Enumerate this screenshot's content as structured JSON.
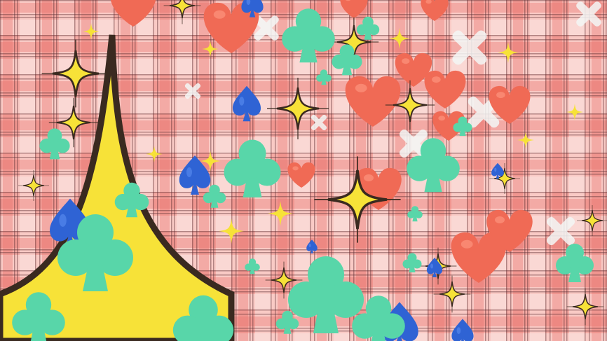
{
  "scene": {
    "description_none": "",
    "palette": {
      "plaid_base": "#f5aaa4",
      "plaid_light": "#fbe3e0",
      "plaid_dark": "#e86f6a",
      "plaid_line": "#5b2f32",
      "heart": "#f06a55",
      "heart_highlight": "#ff9b84",
      "club": "#58d6a9",
      "club_shadow": "#3fb58e",
      "spade": "#2f63d4",
      "spade_highlight": "#5b8ef0",
      "sparkle": "#f7e238",
      "sparkle_outline": "#3a2a20",
      "cross": "#f4f7f6"
    },
    "icons": [
      "heart-icon",
      "club-icon",
      "spade-icon",
      "sparkle-icon",
      "cross-icon"
    ]
  }
}
